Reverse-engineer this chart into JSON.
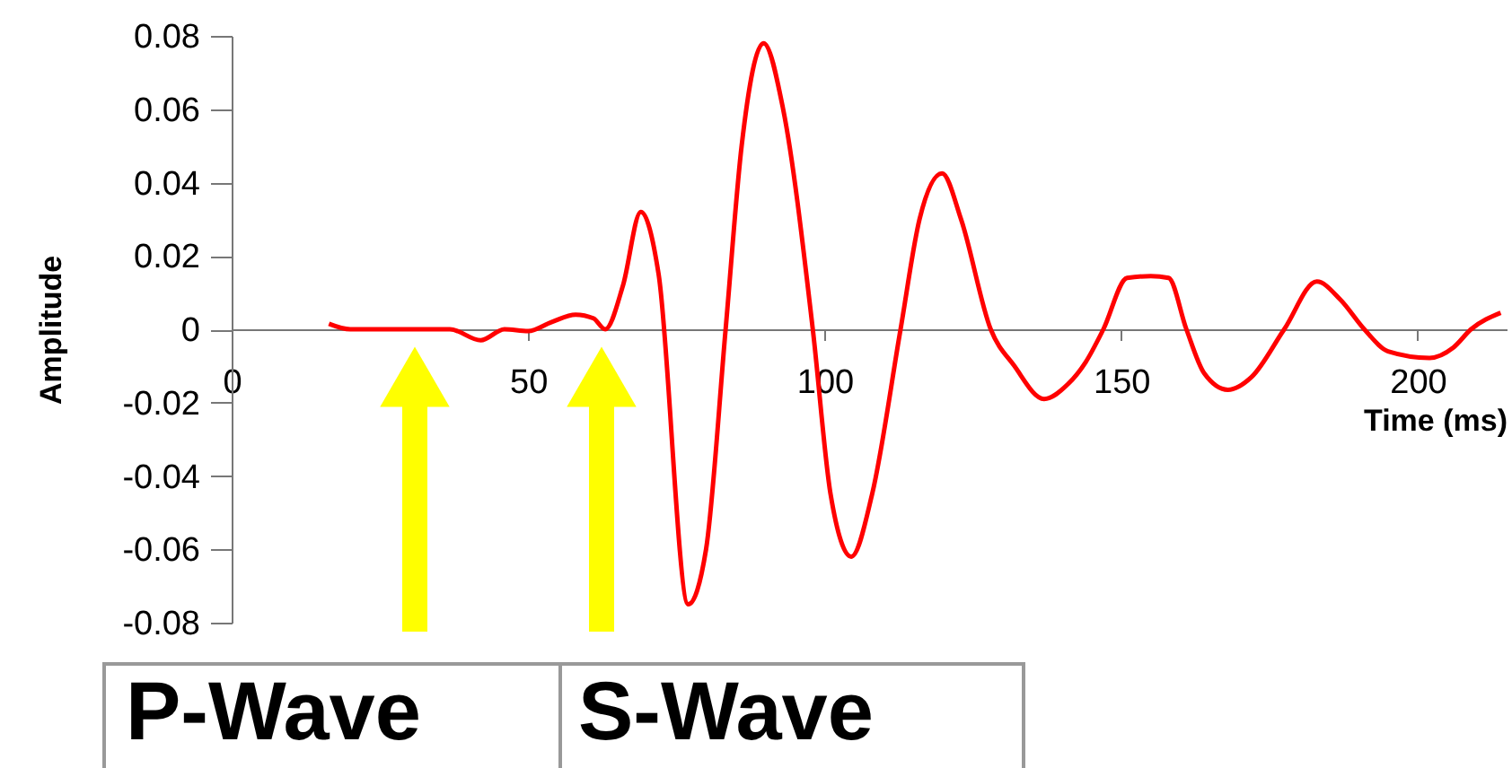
{
  "chart_data": {
    "type": "line",
    "xlabel": "Time (ms)",
    "ylabel": "Amplitude",
    "series": [
      {
        "color": "#ff0000",
        "x": [
          16.4,
          20,
          25,
          30,
          36.8,
          42,
          46,
          50,
          54,
          58,
          61,
          63,
          66,
          69,
          72,
          77,
          80,
          83.3,
          86,
          89.7,
          93,
          98,
          101,
          104.5,
          108,
          112.8,
          116,
          119.8,
          123,
          128,
          131.9,
          137,
          141,
          144,
          147,
          151,
          155,
          158,
          161,
          164,
          168,
          172,
          177.5,
          183,
          187,
          191,
          195,
          202,
          206,
          209,
          214
        ],
        "values": [
          0.0015,
          0,
          0,
          0,
          0,
          -0.003,
          0,
          -0.0005,
          0.002,
          0.004,
          0.003,
          0,
          0.012,
          0.032,
          0.015,
          -0.075,
          -0.06,
          0,
          0.05,
          0.078,
          0.06,
          0,
          -0.045,
          -0.062,
          -0.045,
          0,
          0.03,
          0.0425,
          0.03,
          0,
          -0.0098,
          -0.019,
          -0.015,
          -0.009,
          0,
          0.014,
          0.0145,
          0.014,
          0,
          -0.012,
          -0.0165,
          -0.013,
          0,
          0.013,
          0.008,
          0,
          -0.006,
          -0.0078,
          -0.005,
          0,
          0.0045
        ]
      }
    ],
    "xlim": [
      0,
      215
    ],
    "xticks": [
      0,
      50,
      100,
      150,
      200
    ],
    "ylim": [
      -0.08,
      0.08
    ],
    "yticks": [
      -0.08,
      -0.06,
      -0.04,
      -0.02,
      0,
      0.02,
      0.04,
      0.06,
      0.08
    ],
    "annotations": [
      "P-Wave",
      "S-Wave"
    ],
    "grid": false,
    "marker": "none",
    "line_style": "solid"
  }
}
